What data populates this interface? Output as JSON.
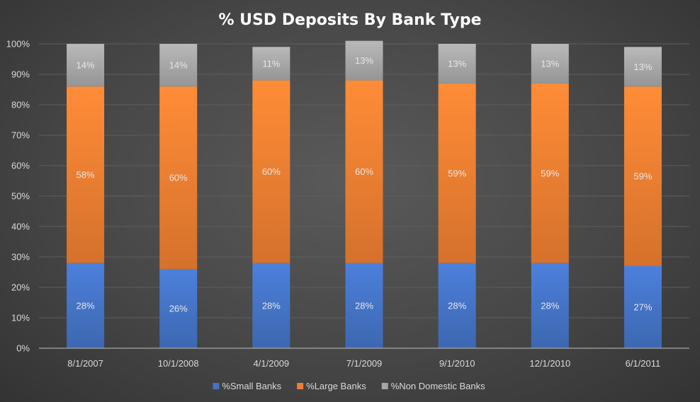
{
  "chart_data": {
    "type": "bar",
    "stacked": true,
    "title": "% USD Deposits By Bank Type",
    "xlabel": "",
    "ylabel": "",
    "ylim": [
      0,
      100
    ],
    "y_ticks": [
      "0%",
      "10%",
      "20%",
      "30%",
      "40%",
      "50%",
      "60%",
      "70%",
      "80%",
      "90%",
      "100%"
    ],
    "categories": [
      "8/1/2007",
      "10/1/2008",
      "4/1/2009",
      "7/1/2009",
      "9/1/2010",
      "12/1/2010",
      "6/1/2011"
    ],
    "series": [
      {
        "name": "%Small Banks",
        "color": "#4472c4",
        "values": [
          28,
          26,
          28,
          28,
          28,
          28,
          27
        ],
        "labels": [
          "28%",
          "26%",
          "28%",
          "28%",
          "28%",
          "28%",
          "27%"
        ]
      },
      {
        "name": "%Large Banks",
        "color": "#ed7d31",
        "values": [
          58,
          60,
          60,
          60,
          59,
          59,
          59
        ],
        "labels": [
          "58%",
          "60%",
          "60%",
          "60%",
          "59%",
          "59%",
          "59%"
        ]
      },
      {
        "name": "%Non Domestic Banks",
        "color": "#a5a5a5",
        "values": [
          14,
          14,
          11,
          13,
          13,
          13,
          13
        ],
        "labels": [
          "14%",
          "14%",
          "11%",
          "13%",
          "13%",
          "13%",
          "13%"
        ]
      }
    ],
    "grid": true,
    "legend_position": "bottom"
  }
}
